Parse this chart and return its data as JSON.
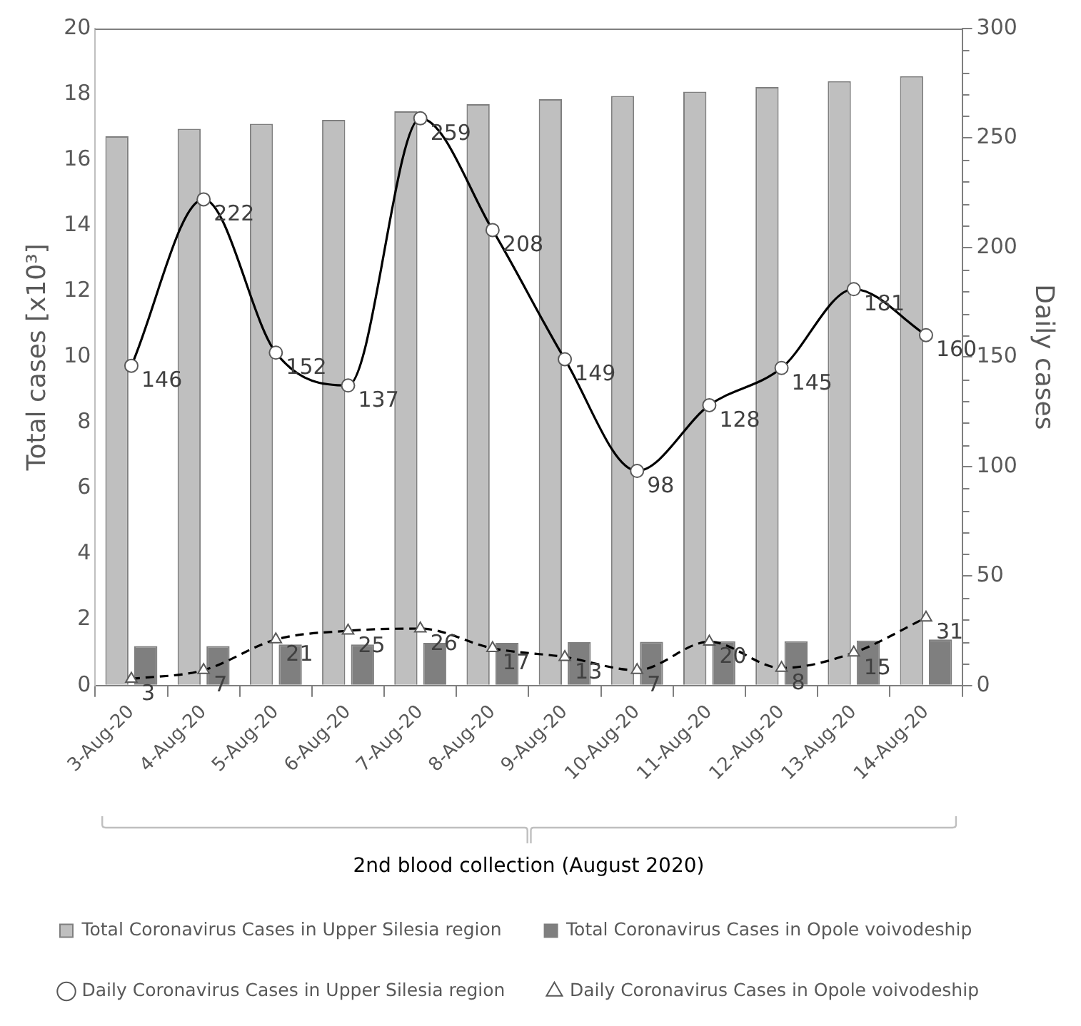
{
  "chart_data": {
    "type": "bar",
    "xlabel": "2nd blood collection (August 2020)",
    "ylabel": "Total cases [x10³]",
    "y2label": "Daily cases",
    "categories": [
      "3-Aug-20",
      "4-Aug-20",
      "5-Aug-20",
      "6-Aug-20",
      "7-Aug-20",
      "8-Aug-20",
      "9-Aug-20",
      "10-Aug-20",
      "11-Aug-20",
      "12-Aug-20",
      "13-Aug-20",
      "14-Aug-20"
    ],
    "series": [
      {
        "name": "Total Coronavirus Cases in Upper Silesia region",
        "color": "#bfbfbf",
        "values": [
          16.72,
          16.95,
          17.1,
          17.22,
          17.48,
          17.7,
          17.85,
          17.95,
          18.08,
          18.22,
          18.4,
          18.55
        ]
      },
      {
        "name": "Total Coronavirus Cases in Opole voivodeship",
        "color": "#7f7f7f",
        "values": [
          1.2,
          1.2,
          1.25,
          1.25,
          1.3,
          1.3,
          1.32,
          1.33,
          1.35,
          1.35,
          1.37,
          1.4
        ]
      },
      {
        "name": "Daily Coronavirus Cases in Upper Silesia region",
        "type": "line",
        "axis": "y2",
        "color": "#000000",
        "marker": "circle",
        "line_style": "solid",
        "values": [
          146,
          222,
          152,
          137,
          259,
          208,
          149,
          98,
          128,
          145,
          181,
          160
        ],
        "value_labels": [
          "146",
          "222",
          "152",
          "137",
          "259",
          "208",
          "149",
          "98",
          "128",
          "145",
          "181",
          "160"
        ]
      },
      {
        "name": "Daily Coronavirus Cases in Opole voivodeship",
        "type": "line",
        "axis": "y2",
        "color": "#000000",
        "marker": "triangle",
        "line_style": "dashed",
        "values": [
          3,
          7,
          21,
          25,
          26,
          17,
          13,
          7,
          20,
          8,
          15,
          31
        ],
        "value_labels": [
          "3",
          "7",
          "21",
          "25",
          "26",
          "17",
          "13",
          "7",
          "20",
          "8",
          "15",
          "31"
        ]
      }
    ],
    "ylim": [
      0,
      20
    ],
    "yticks": [
      0,
      2,
      4,
      6,
      8,
      10,
      12,
      14,
      16,
      18,
      20
    ],
    "y2lim": [
      0,
      300
    ],
    "y2ticks": [
      0,
      {
        "value": 10,
        "label": null
      },
      {
        "value": 20,
        "label": null
      },
      {
        "value": 30,
        "label": null
      },
      {
        "value": 40,
        "label": null
      },
      50,
      {
        "value": 60,
        "label": null
      },
      {
        "value": 70,
        "label": null
      },
      {
        "value": 80,
        "label": null
      },
      {
        "value": 90,
        "label": null
      },
      100,
      {
        "value": 110,
        "label": null
      },
      {
        "value": 120,
        "label": null
      },
      {
        "value": 130,
        "label": null
      },
      {
        "value": 140,
        "label": null
      },
      150,
      {
        "value": 160,
        "label": null
      },
      {
        "value": 170,
        "label": null
      },
      {
        "value": 180,
        "label": null
      },
      {
        "value": 190,
        "label": null
      },
      200,
      {
        "value": 210,
        "label": null
      },
      {
        "value": 220,
        "label": null
      },
      {
        "value": 230,
        "label": null
      },
      {
        "value": 240,
        "label": null
      },
      250,
      {
        "value": 260,
        "label": null
      },
      {
        "value": 270,
        "label": null
      },
      {
        "value": 280,
        "label": null
      },
      {
        "value": 290,
        "label": null
      },
      300
    ],
    "grid": false,
    "legend": "bottom"
  }
}
